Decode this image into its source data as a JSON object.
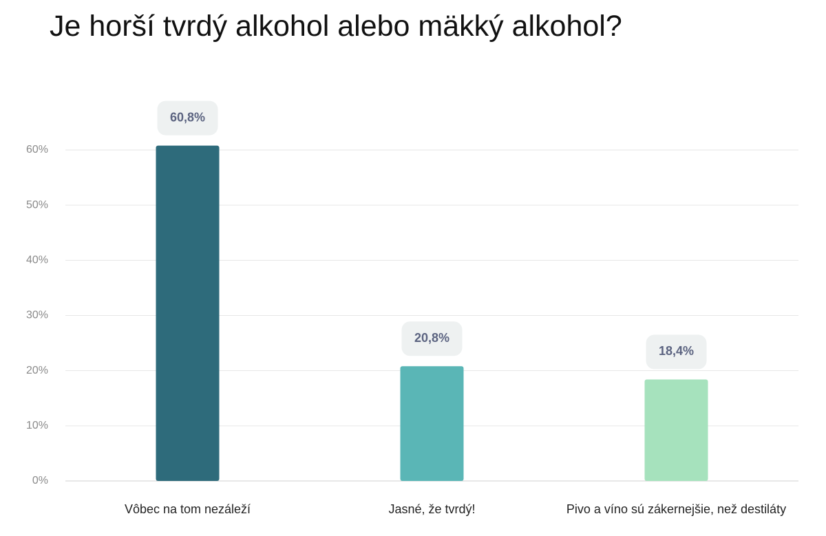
{
  "chart_data": {
    "type": "bar",
    "title": "Je horší tvrdý alkohol alebo mäkký alkohol?",
    "categories": [
      "Vôbec na tom nezáleží",
      "Jasné, že tvrdý!",
      "Pivo a víno sú zákernejšie, než destiláty"
    ],
    "values": [
      60.8,
      20.8,
      18.4
    ],
    "value_labels": [
      "60,8%",
      "20,8%",
      "18,4%"
    ],
    "colors": [
      "#2e6b7b",
      "#5ab6b6",
      "#a6e2bd"
    ],
    "ylim": [
      0,
      70
    ],
    "yticks": [
      {
        "value": 0,
        "label": "0%"
      },
      {
        "value": 10,
        "label": "10%"
      },
      {
        "value": 20,
        "label": "20%"
      },
      {
        "value": 30,
        "label": "30%"
      },
      {
        "value": 40,
        "label": "40%"
      },
      {
        "value": 50,
        "label": "50%"
      },
      {
        "value": 60,
        "label": "60%"
      }
    ],
    "grid": true
  }
}
